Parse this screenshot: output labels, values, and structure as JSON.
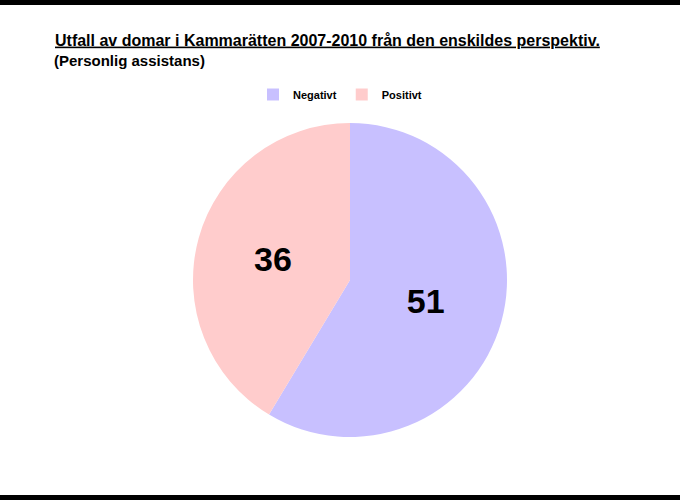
{
  "chart_data": {
    "type": "pie",
    "title": "Utfall av domar i Kammarätten 2007-2010 från den enskildes perspektiv.",
    "subtitle": "(Personlig assistans)",
    "categories": [
      "Negativt",
      "Positivt"
    ],
    "values": [
      51,
      36
    ],
    "colors": [
      "#c8c0ff",
      "#ffcccc"
    ],
    "data_labels": true,
    "legend": "top"
  }
}
